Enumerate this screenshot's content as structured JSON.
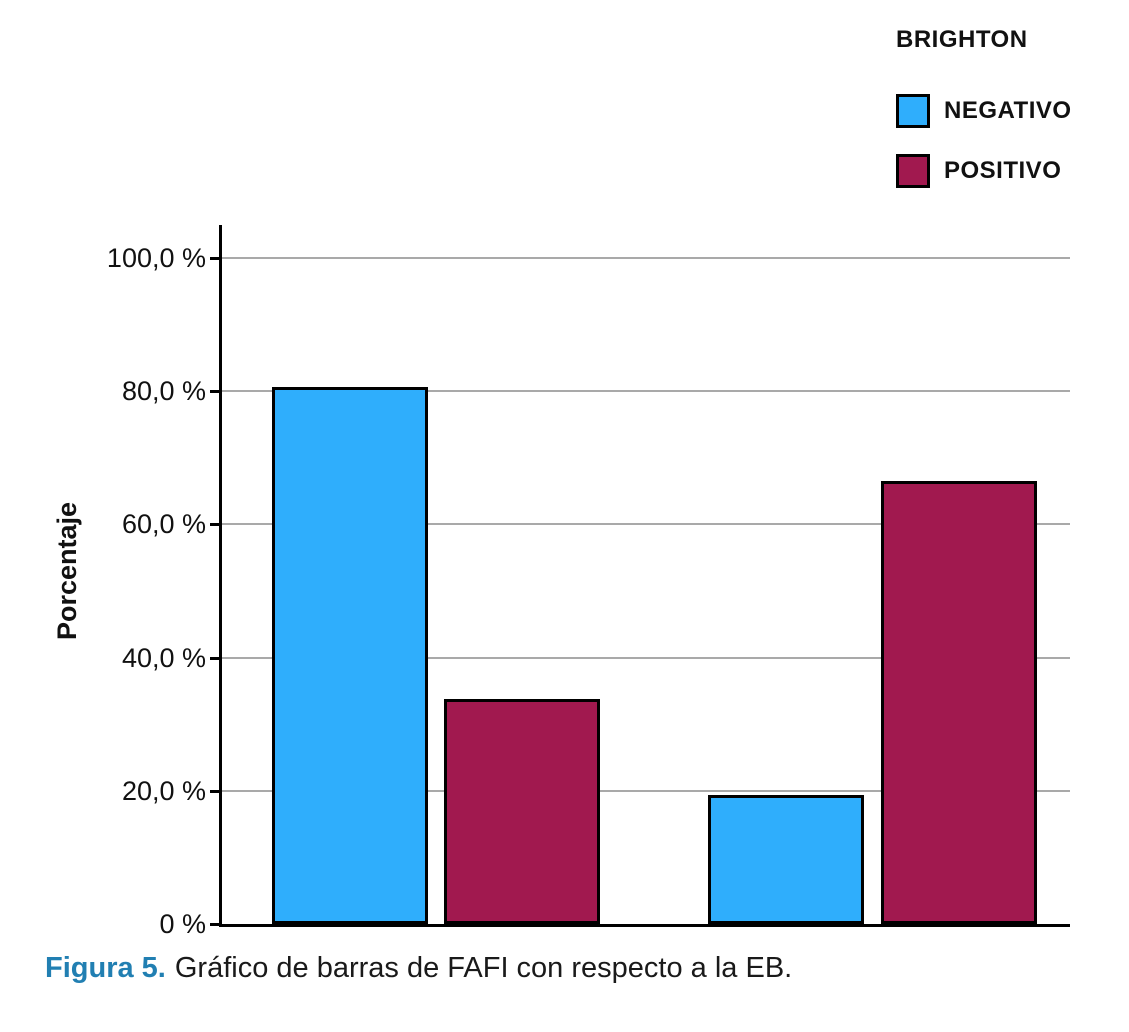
{
  "chart_data": {
    "type": "bar",
    "title": "",
    "xlabel": "",
    "ylabel": "Porcentaje",
    "ylim": [
      0,
      100
    ],
    "grid": true,
    "legend_position": "top-right",
    "legend": {
      "title": "BRIGHTON",
      "entries": [
        {
          "label": "NEGATIVO",
          "color": "#2FAEFC"
        },
        {
          "label": "POSITIVO",
          "color": "#A1194F"
        }
      ]
    },
    "yticks": [
      {
        "value": 0,
        "label": "0 %"
      },
      {
        "value": 20,
        "label": "20,0 %"
      },
      {
        "value": 40,
        "label": "40,0 %"
      },
      {
        "value": 60,
        "label": "60,0 %"
      },
      {
        "value": 80,
        "label": "80,0 %"
      },
      {
        "value": 100,
        "label": "100,0 %"
      }
    ],
    "groups": [
      {
        "bars": [
          {
            "series": "NEGATIVO",
            "value": 80.7
          },
          {
            "series": "POSITIVO",
            "value": 33.8
          }
        ]
      },
      {
        "bars": [
          {
            "series": "NEGATIVO",
            "value": 19.4
          },
          {
            "series": "POSITIVO",
            "value": 66.5
          }
        ]
      }
    ]
  },
  "caption": {
    "label": "Figura 5.",
    "text": "Gráfico de barras de FAFI con respecto a la EB."
  },
  "colors": {
    "bar_negativo": "#2FAEFC",
    "bar_positivo": "#A1194F",
    "bar_border": "#000000",
    "gridline": "#A9A9A9",
    "axis": "#000000",
    "caption_accent": "#217FB2",
    "text": "#111111"
  }
}
